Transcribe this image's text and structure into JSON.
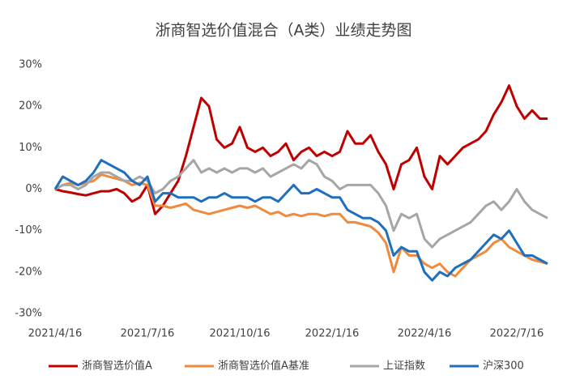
{
  "chart_data": {
    "type": "line",
    "title": "浙商智选价值混合（A类）业绩走势图",
    "categories": [
      "2021/4/16",
      null,
      null,
      null,
      null,
      null,
      null,
      null,
      null,
      null,
      null,
      null,
      "2021/7/16",
      null,
      null,
      null,
      null,
      null,
      null,
      null,
      null,
      null,
      null,
      null,
      "2021/10/16",
      null,
      null,
      null,
      null,
      null,
      null,
      null,
      null,
      null,
      null,
      null,
      "2022/1/16",
      null,
      null,
      null,
      null,
      null,
      null,
      null,
      null,
      null,
      null,
      null,
      "2022/4/16",
      null,
      null,
      null,
      null,
      null,
      null,
      null,
      null,
      null,
      null,
      null,
      "2022/7/16",
      null,
      null,
      null,
      null
    ],
    "series": [
      {
        "name": "浙商智选价值A",
        "color": "#c00000",
        "values": [
          0,
          -0.5,
          -0.8,
          -1.2,
          -1.5,
          -1,
          -0.5,
          -0.5,
          0,
          -1,
          -3,
          -2,
          1,
          -6,
          -4,
          -1,
          2,
          8,
          15,
          22,
          20,
          12,
          10,
          11,
          15,
          10,
          9,
          10,
          8,
          9,
          11,
          7,
          9,
          10,
          8,
          9,
          8,
          9,
          14,
          11,
          11,
          13,
          9,
          6,
          0,
          6,
          7,
          10,
          3,
          0,
          8,
          6,
          8,
          10,
          11,
          12,
          14,
          18,
          21,
          25,
          20,
          17,
          19,
          17,
          17
        ]
      },
      {
        "name": "浙商智选价值A基准",
        "color": "#f08a3c",
        "values": [
          0,
          1,
          1.5,
          1,
          1.5,
          2,
          3.5,
          3,
          2.5,
          2,
          1,
          1.5,
          1,
          -4,
          -4,
          -4.5,
          -4,
          -3.5,
          -5,
          -5.5,
          -6,
          -5.5,
          -5,
          -4.5,
          -4,
          -4.5,
          -4,
          -5,
          -6,
          -5.5,
          -6.5,
          -6,
          -6.5,
          -6,
          -6,
          -6.5,
          -6,
          -6,
          -8,
          -8,
          -8.5,
          -9,
          -10.5,
          -13,
          -20,
          -14,
          -16,
          -16,
          -18,
          -19,
          -18,
          -20,
          -21,
          -19,
          -17,
          -16,
          -15,
          -13,
          -12,
          -14,
          -15,
          -16,
          -17,
          -17.5,
          -18
        ]
      },
      {
        "name": "上证指数",
        "color": "#a6a6a6",
        "values": [
          0,
          1,
          1,
          0,
          1,
          3,
          4,
          4,
          3,
          2,
          2,
          3,
          2,
          -1,
          0,
          2,
          3,
          5,
          7,
          4,
          5,
          4,
          5,
          4,
          5,
          5,
          4,
          5,
          3,
          4,
          5,
          6,
          5,
          7,
          6,
          3,
          2,
          0,
          1,
          1,
          1,
          1,
          -1,
          -4,
          -10,
          -6,
          -7,
          -6,
          -12,
          -14,
          -12,
          -11,
          -10,
          -9,
          -8,
          -6,
          -4,
          -3,
          -5,
          -3,
          0,
          -3,
          -5,
          -6,
          -7
        ]
      },
      {
        "name": "沪深300",
        "color": "#1f6fbf",
        "values": [
          0,
          3,
          2,
          1,
          2,
          4,
          7,
          6,
          5,
          4,
          2,
          1,
          3,
          -3,
          -1,
          -1,
          -2,
          -2,
          -2,
          -3,
          -2,
          -2,
          -1,
          -2,
          -2,
          -2,
          -3,
          -2,
          -2,
          -3,
          -1,
          1,
          -1,
          -1,
          0,
          -1,
          -2,
          -2,
          -5,
          -6,
          -7,
          -7,
          -8,
          -10,
          -16,
          -14,
          -15,
          -15,
          -20,
          -22,
          -20,
          -21,
          -19,
          -18,
          -17,
          -15,
          -13,
          -11,
          -12,
          -10,
          -13,
          -16,
          -16,
          -17,
          -18
        ]
      }
    ],
    "ylim": [
      -30,
      30
    ],
    "yticks": [
      {
        "value": -30,
        "label": "-30%"
      },
      {
        "value": -20,
        "label": "-20%"
      },
      {
        "value": -10,
        "label": "-10%"
      },
      {
        "value": 0,
        "label": "0%"
      },
      {
        "value": 10,
        "label": "10%"
      },
      {
        "value": 20,
        "label": "20%"
      },
      {
        "value": 30,
        "label": "30%"
      }
    ],
    "grid": false,
    "legend": "bottom"
  }
}
